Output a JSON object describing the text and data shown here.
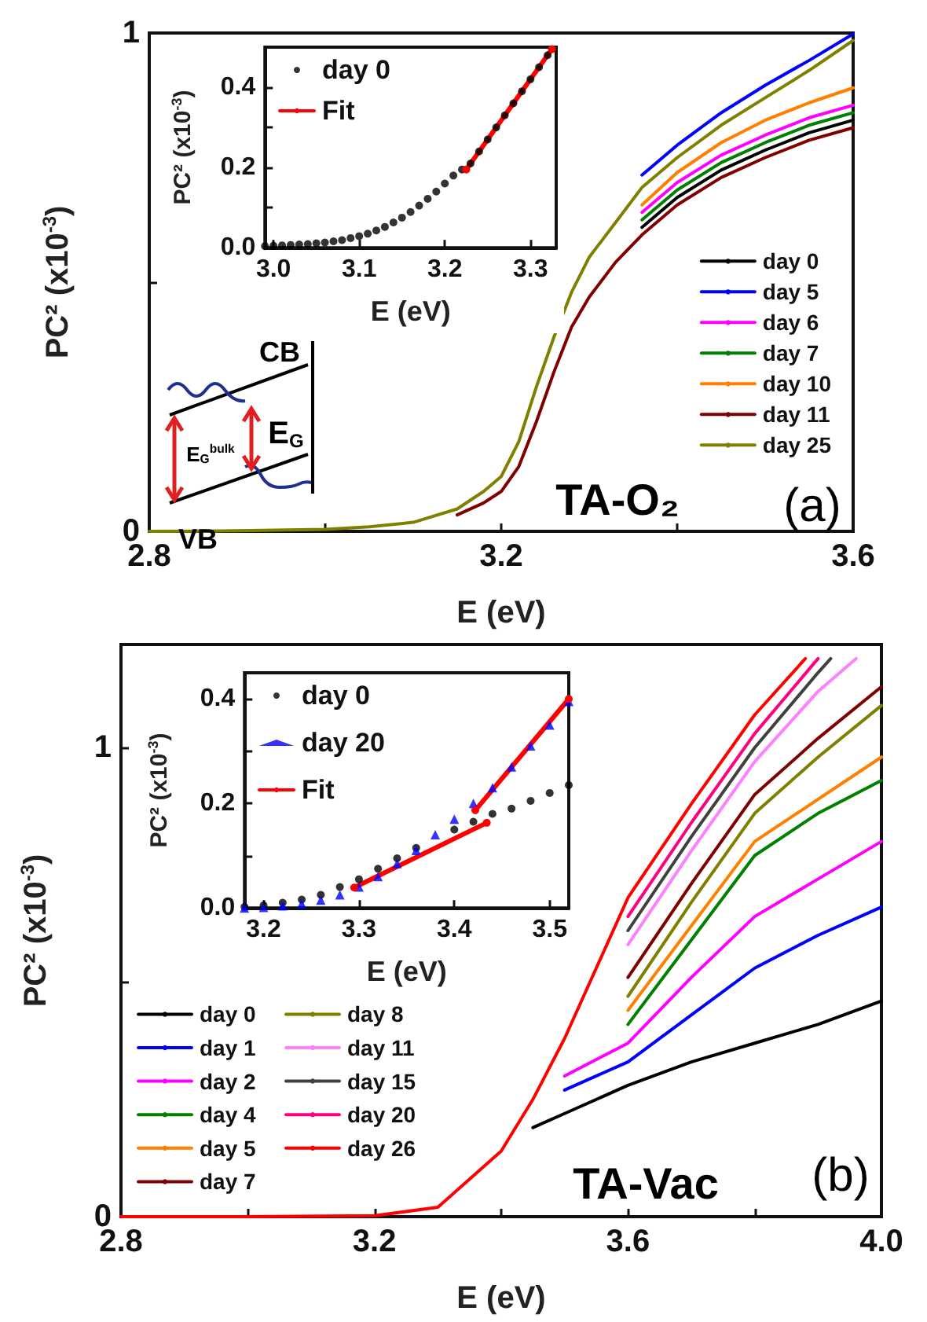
{
  "chart_data": [
    {
      "type": "line",
      "xlabel": "E (eV)",
      "ylabel": "PC² (x10$^{-3}$)",
      "marker": "none",
      "legend": "right",
      "xlim": [
        2.8,
        3.6
      ],
      "xticks": [
        2.8,
        {
          "value": 3.0,
          "label": null
        },
        3.2,
        {
          "value": 3.4,
          "label": null
        },
        3.6
      ],
      "ylim": [
        0,
        1
      ],
      "yticks": [
        0,
        {
          "value": 0.5,
          "label": null
        },
        1
      ],
      "annotations": [
        "TA-O₂",
        "(a)",
        "CB",
        "VB",
        "E$_{G}$$^{bulk}$",
        "E$_{G}$"
      ],
      "x": [
        2.8,
        2.9,
        3.0,
        3.05,
        3.1,
        3.15,
        3.18,
        3.2,
        3.22,
        3.24,
        3.26,
        3.28,
        3.3,
        3.33,
        3.36,
        3.4,
        3.45,
        3.5,
        3.55,
        3.6
      ],
      "series": [
        {
          "name": "day 0",
          "color": "#000000",
          "x": [
            3.36,
            3.4,
            3.45,
            3.5,
            3.55,
            3.6
          ],
          "values": [
            0.61,
            0.67,
            0.725,
            0.765,
            0.8,
            0.825
          ]
        },
        {
          "name": "day 5",
          "color": "#0000ff",
          "x": [
            3.36,
            3.4,
            3.45,
            3.5,
            3.55,
            3.6
          ],
          "values": [
            0.715,
            0.775,
            0.84,
            0.895,
            0.945,
            0.998
          ]
        },
        {
          "name": "day 6",
          "color": "#ff00ff",
          "x": [
            3.36,
            3.4,
            3.45,
            3.5,
            3.55,
            3.6
          ],
          "values": [
            0.64,
            0.7,
            0.755,
            0.795,
            0.83,
            0.855
          ]
        },
        {
          "name": "day 7",
          "color": "#008000",
          "x": [
            3.36,
            3.4,
            3.45,
            3.5,
            3.55,
            3.6
          ],
          "values": [
            0.625,
            0.685,
            0.74,
            0.78,
            0.815,
            0.84
          ]
        },
        {
          "name": "day 10",
          "color": "#ff8000",
          "x": [
            3.36,
            3.4,
            3.45,
            3.5,
            3.55,
            3.6
          ],
          "values": [
            0.655,
            0.72,
            0.78,
            0.825,
            0.86,
            0.89
          ]
        },
        {
          "name": "day 11",
          "color": "#800000",
          "x": [
            3.15,
            3.18,
            3.2,
            3.22,
            3.24,
            3.26,
            3.28,
            3.3,
            3.33,
            3.36,
            3.4,
            3.45,
            3.5,
            3.55,
            3.6
          ],
          "values": [
            0.033,
            0.057,
            0.08,
            0.13,
            0.22,
            0.32,
            0.41,
            0.47,
            0.54,
            0.595,
            0.655,
            0.71,
            0.75,
            0.785,
            0.81
          ]
        },
        {
          "name": "day 25",
          "color": "#808000",
          "values": [
            0,
            0.001,
            0.004,
            0.009,
            0.018,
            0.045,
            0.08,
            0.11,
            0.18,
            0.29,
            0.39,
            0.48,
            0.55,
            0.62,
            0.69,
            0.75,
            0.815,
            0.87,
            0.925,
            0.985
          ]
        }
      ]
    },
    {
      "type": "scatter",
      "xlabel": "E (eV)",
      "ylabel": "PC² (x10$^{-3}$)",
      "marker": "circle",
      "legend": "top left",
      "xlim": [
        2.99,
        3.33
      ],
      "xticks": [
        {
          "value": 3,
          "label": "3.0"
        },
        3.1,
        3.2,
        3.3
      ],
      "ylim": [
        0,
        0.5
      ],
      "yticks": [
        {
          "value": 0,
          "label": "0.0"
        },
        {
          "value": 0.1,
          "label": null
        },
        0.2,
        {
          "value": 0.3,
          "label": null
        },
        0.4
      ],
      "series": [
        {
          "name": "day 0",
          "color": "#000000",
          "x": [
            2.99,
            3.0,
            3.01,
            3.02,
            3.03,
            3.04,
            3.05,
            3.06,
            3.07,
            3.08,
            3.09,
            3.1,
            3.11,
            3.12,
            3.13,
            3.14,
            3.15,
            3.16,
            3.17,
            3.18,
            3.19,
            3.2,
            3.21,
            3.22,
            3.23,
            3.24,
            3.25,
            3.26,
            3.27,
            3.28,
            3.29,
            3.3,
            3.31,
            3.32
          ],
          "values": [
            0.004,
            0.005,
            0.006,
            0.007,
            0.008,
            0.009,
            0.011,
            0.013,
            0.016,
            0.019,
            0.024,
            0.029,
            0.035,
            0.043,
            0.052,
            0.063,
            0.075,
            0.089,
            0.105,
            0.122,
            0.14,
            0.16,
            0.18,
            0.195,
            0.21,
            0.24,
            0.27,
            0.3,
            0.33,
            0.36,
            0.39,
            0.42,
            0.45,
            0.48
          ]
        },
        {
          "name": "Fit",
          "type": "line",
          "color": "#ff0000",
          "x": [
            3.225,
            3.325
          ],
          "values": [
            0.195,
            0.495
          ]
        }
      ]
    },
    {
      "type": "line",
      "xlabel": "E (eV)",
      "ylabel": "PC² (x10$^{-3}$)",
      "marker": "none",
      "legend": "bottom left",
      "xlim": [
        2.8,
        4.0
      ],
      "xticks": [
        2.8,
        {
          "value": 3.0,
          "label": null
        },
        3.2,
        {
          "value": 3.4,
          "label": null
        },
        3.6,
        {
          "value": 3.8,
          "label": null
        },
        {
          "value": 4,
          "label": "4.0"
        }
      ],
      "ylim": [
        0,
        1.22
      ],
      "yticks": [
        0,
        {
          "value": 0.5,
          "label": null
        },
        1
      ],
      "annotations": [
        "TA-Vac",
        "(b)"
      ],
      "series": [
        {
          "name": "day 0",
          "color": "#000000",
          "x": [
            3.45,
            3.5,
            3.6,
            3.7,
            3.8,
            3.9,
            4.0
          ],
          "values": [
            0.19,
            0.22,
            0.28,
            0.33,
            0.37,
            0.41,
            0.46
          ]
        },
        {
          "name": "day 1",
          "color": "#0000ff",
          "x": [
            3.5,
            3.6,
            3.7,
            3.8,
            3.9,
            4.0
          ],
          "values": [
            0.27,
            0.33,
            0.43,
            0.53,
            0.6,
            0.66
          ]
        },
        {
          "name": "day 2",
          "color": "#ff00ff",
          "x": [
            3.5,
            3.6,
            3.7,
            3.8,
            3.9,
            4.0
          ],
          "values": [
            0.3,
            0.37,
            0.51,
            0.64,
            0.72,
            0.8
          ]
        },
        {
          "name": "day 4",
          "color": "#008000",
          "x": [
            3.6,
            3.7,
            3.8,
            3.9,
            4.0
          ],
          "values": [
            0.41,
            0.59,
            0.77,
            0.86,
            0.93
          ]
        },
        {
          "name": "day 5",
          "color": "#ff8000",
          "x": [
            3.6,
            3.7,
            3.8,
            3.9,
            4.0
          ],
          "values": [
            0.44,
            0.62,
            0.8,
            0.89,
            0.98
          ]
        },
        {
          "name": "day 7",
          "color": "#800000",
          "x": [
            3.6,
            3.7,
            3.8,
            3.9,
            4.0
          ],
          "values": [
            0.51,
            0.71,
            0.9,
            1.02,
            1.13
          ]
        },
        {
          "name": "day 8",
          "color": "#808000",
          "x": [
            3.6,
            3.7,
            3.8,
            3.9,
            4.0
          ],
          "values": [
            0.47,
            0.67,
            0.86,
            0.98,
            1.09
          ]
        },
        {
          "name": "day 11",
          "color": "#ff80ff",
          "x": [
            3.6,
            3.7,
            3.8,
            3.9,
            3.96
          ],
          "values": [
            0.58,
            0.78,
            0.97,
            1.12,
            1.19
          ]
        },
        {
          "name": "day 15",
          "color": "#404040",
          "x": [
            3.6,
            3.7,
            3.8,
            3.9,
            3.92
          ],
          "values": [
            0.61,
            0.81,
            1.0,
            1.16,
            1.19
          ]
        },
        {
          "name": "day 20",
          "color": "#ff0080",
          "x": [
            3.6,
            3.7,
            3.8,
            3.9
          ],
          "values": [
            0.64,
            0.84,
            1.03,
            1.19
          ]
        },
        {
          "name": "day 26",
          "color": "#ff0000",
          "x": [
            2.8,
            3.0,
            3.2,
            3.3,
            3.4,
            3.45,
            3.5,
            3.6,
            3.7,
            3.8,
            3.88
          ],
          "values": [
            0,
            0,
            0.002,
            0.02,
            0.14,
            0.25,
            0.38,
            0.68,
            0.88,
            1.07,
            1.19
          ]
        }
      ]
    },
    {
      "type": "scatter",
      "xlabel": "E (eV)",
      "ylabel": "PC² (x10$^{-3}$)",
      "marker": "circle",
      "legend": "top left",
      "xlim": [
        3.18,
        3.52
      ],
      "xticks": [
        3.2,
        3.3,
        3.4,
        3.5
      ],
      "ylim": [
        0,
        0.45
      ],
      "yticks": [
        {
          "value": 0,
          "label": "0.0"
        },
        {
          "value": 0.1,
          "label": null
        },
        0.2,
        {
          "value": 0.3,
          "label": null
        },
        0.4
      ],
      "series": [
        {
          "name": "day 0",
          "color": "#000000",
          "x": [
            3.18,
            3.2,
            3.22,
            3.24,
            3.26,
            3.28,
            3.3,
            3.32,
            3.34,
            3.36,
            3.38,
            3.4,
            3.42,
            3.44,
            3.46,
            3.48,
            3.5,
            3.52
          ],
          "values": [
            0.002,
            0.005,
            0.01,
            0.016,
            0.025,
            0.04,
            0.055,
            0.075,
            0.095,
            0.115,
            null,
            0.15,
            0.165,
            0.18,
            0.19,
            0.205,
            0.22,
            0.235
          ]
        },
        {
          "name": "day 20",
          "color": "#0000ff",
          "marker": "triangle",
          "x": [
            3.18,
            3.2,
            3.22,
            3.24,
            3.26,
            3.28,
            3.3,
            3.32,
            3.34,
            3.36,
            3.38,
            3.4,
            3.42,
            3.44,
            3.46,
            3.48,
            3.5,
            3.52
          ],
          "values": [
            0,
            0.001,
            0.004,
            0.008,
            0.015,
            0.025,
            0.04,
            0.06,
            0.085,
            0.11,
            0.14,
            0.17,
            0.2,
            0.23,
            0.27,
            0.31,
            0.35,
            0.395
          ]
        },
        {
          "name": "Fit",
          "type": "line",
          "color": "#ff0000",
          "x": [
            3.295,
            3.434
          ],
          "values": [
            0.039,
            0.163
          ]
        },
        {
          "type": "line",
          "color": "#ff0000",
          "x": [
            3.422,
            3.52
          ],
          "values": [
            0.187,
            0.4
          ]
        }
      ]
    }
  ]
}
